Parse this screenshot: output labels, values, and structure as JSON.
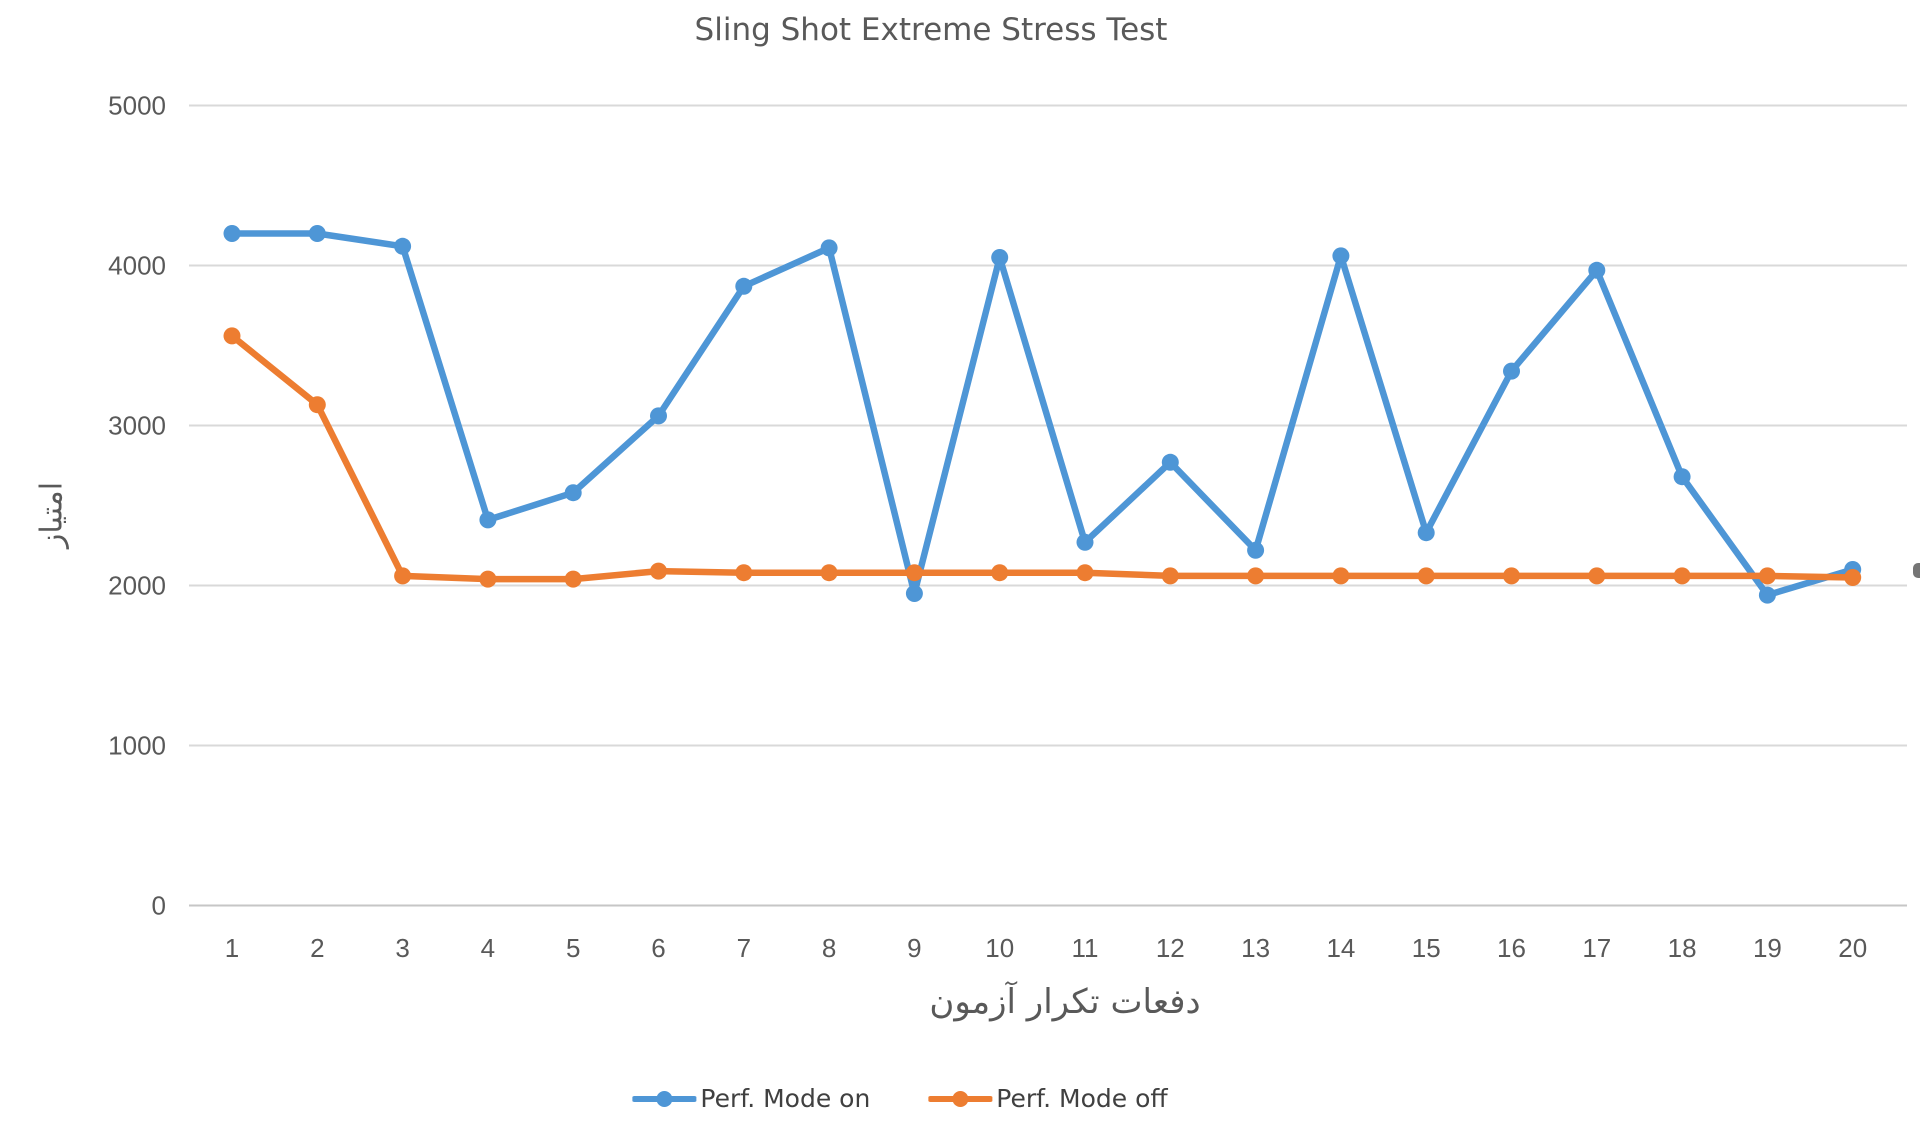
{
  "chart": {
    "title": "Sling Shot Extreme Stress Test",
    "xlabel": "دفعات تکرار آزمون",
    "ylabel": "امتیاز"
  },
  "chart_data": {
    "type": "line",
    "title": "Sling Shot Extreme Stress Test",
    "xlabel": "دفعات تکرار آزمون",
    "ylabel": "امتیاز",
    "x": [
      1,
      2,
      3,
      4,
      5,
      6,
      7,
      8,
      9,
      10,
      11,
      12,
      13,
      14,
      15,
      16,
      17,
      18,
      19,
      20
    ],
    "series": [
      {
        "name": "Perf. Mode on",
        "color": "#4E96D6",
        "values": [
          4200,
          4200,
          4120,
          2410,
          2580,
          3060,
          3870,
          4110,
          1950,
          4050,
          2270,
          2770,
          2220,
          4060,
          2330,
          3340,
          3970,
          2680,
          1940,
          2100
        ]
      },
      {
        "name": "Perf. Mode off",
        "color": "#ED7D31",
        "values": [
          3560,
          3130,
          2060,
          2040,
          2040,
          2090,
          2080,
          2080,
          2080,
          2080,
          2080,
          2060,
          2060,
          2060,
          2060,
          2060,
          2060,
          2060,
          2060,
          2050
        ]
      }
    ],
    "ylim": [
      0,
      5000
    ],
    "yticks": [
      0,
      1000,
      2000,
      3000,
      4000,
      5000
    ],
    "grid": true,
    "legend_position": "bottom-center",
    "gridline_color": "#D9D9D9",
    "axis_line_color": "#C6C6C6",
    "tick_label_color": "#595959"
  },
  "legend": {
    "items": [
      {
        "label": "Perf. Mode on",
        "color": "#4E96D6"
      },
      {
        "label": "Perf. Mode off",
        "color": "#ED7D31"
      }
    ]
  }
}
